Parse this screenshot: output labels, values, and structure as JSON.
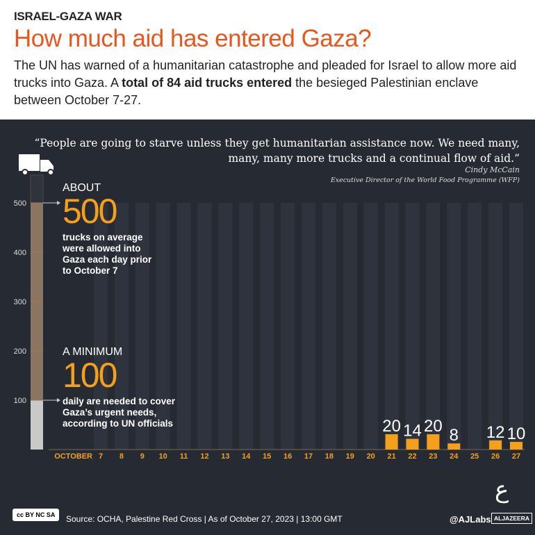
{
  "header": {
    "kicker": "ISRAEL-GAZA WAR",
    "title": "How much aid has entered Gaza?",
    "subtitle_pre": "The UN has warned of a humanitarian catastrophe and pleaded for Israel to allow more aid trucks into Gaza. A ",
    "subtitle_bold": "total of 84 aid trucks entered",
    "subtitle_post": " the besieged Palestinian enclave between October 7-27."
  },
  "quote": {
    "text": "“People are going to starve unless they get humanitarian assistance now. We need many, many, many more trucks and a continual flow of aid.”",
    "author": "Cindy McCain",
    "role": "Executive Director of the World Food Programme (WFP)"
  },
  "annotations": {
    "about_label": "ABOUT",
    "about_value": "500",
    "about_desc": "trucks on average were allowed into Gaza each day prior to October 7",
    "min_label": "A MINIMUM",
    "min_value": "100",
    "min_desc": "daily are needed to cover Gaza’s urgent needs, according to UN officials"
  },
  "chart_data": {
    "type": "bar",
    "xlabel": "OCTOBER",
    "ylabel": "",
    "ylim": [
      0,
      500
    ],
    "yticks": [
      100,
      200,
      300,
      400,
      500
    ],
    "categories": [
      "7",
      "8",
      "9",
      "10",
      "11",
      "12",
      "13",
      "14",
      "15",
      "16",
      "17",
      "18",
      "19",
      "20",
      "21",
      "22",
      "23",
      "24",
      "25",
      "26",
      "27"
    ],
    "values": [
      0,
      0,
      0,
      0,
      0,
      0,
      0,
      0,
      0,
      0,
      0,
      0,
      0,
      0,
      20,
      14,
      20,
      8,
      0,
      12,
      10
    ],
    "reference_bars": [
      {
        "name": "pre-war average",
        "value": 500
      },
      {
        "name": "minimum needed",
        "value": 100
      }
    ]
  },
  "colors": {
    "accent": "#f5a01c",
    "title": "#e8561e",
    "background": "#262b33"
  },
  "footer": {
    "license": "cc BY NC SA",
    "source": "Source:  OCHA, Palestine Red Cross   |   As of October 27, 2023   |   13:00 GMT",
    "handle": "@AJLabs",
    "brand": "ALJAZEERA"
  }
}
